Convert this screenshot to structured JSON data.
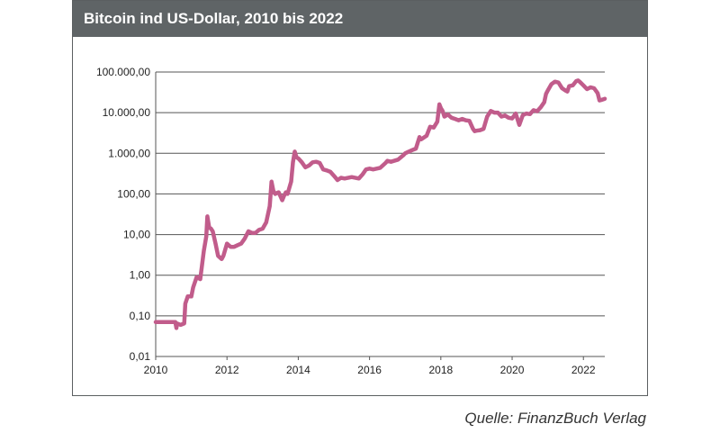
{
  "title": "Bitcoin ind US-Dollar, 2010 bis 2022",
  "source": "Quelle: FinanzBuch Verlag",
  "chart_data": {
    "type": "line",
    "title": "Bitcoin ind US-Dollar, 2010 bis 2022",
    "xlabel": "",
    "ylabel": "",
    "y_scale": "log",
    "xlim": [
      2010,
      2022.6
    ],
    "ylim": [
      0.01,
      100000
    ],
    "x_ticks": [
      2010,
      2012,
      2014,
      2016,
      2018,
      2020,
      2022
    ],
    "x_tick_labels": [
      "2010",
      "2012",
      "2014",
      "2016",
      "2018",
      "2020",
      "2022"
    ],
    "y_ticks": [
      0.01,
      0.1,
      1,
      10,
      100,
      1000,
      10000,
      100000
    ],
    "y_tick_labels": [
      "0,01",
      "0,10",
      "1,00",
      "10,00",
      "100,00",
      "1.000,00",
      "10.000,00",
      "100.000,00"
    ],
    "grid": "horizontal",
    "line_color": "#c15c8b",
    "series": [
      {
        "x": [
          2010.0,
          2010.3,
          2010.55,
          2010.58,
          2010.6,
          2010.7,
          2010.8,
          2010.83,
          2010.9,
          2011.0,
          2011.05,
          2011.15,
          2011.25,
          2011.35,
          2011.42,
          2011.45,
          2011.5,
          2011.55,
          2011.6,
          2011.68,
          2011.75,
          2011.85,
          2011.9,
          2012.0,
          2012.1,
          2012.2,
          2012.3,
          2012.4,
          2012.5,
          2012.6,
          2012.7,
          2012.8,
          2012.9,
          2013.0,
          2013.1,
          2013.2,
          2013.25,
          2013.3,
          2013.35,
          2013.45,
          2013.55,
          2013.6,
          2013.65,
          2013.7,
          2013.8,
          2013.85,
          2013.9,
          2013.95,
          2014.0,
          2014.1,
          2014.2,
          2014.3,
          2014.4,
          2014.5,
          2014.6,
          2014.7,
          2014.8,
          2014.9,
          2015.0,
          2015.1,
          2015.2,
          2015.3,
          2015.5,
          2015.7,
          2015.8,
          2015.9,
          2016.0,
          2016.1,
          2016.3,
          2016.45,
          2016.5,
          2016.6,
          2016.8,
          2016.95,
          2017.0,
          2017.1,
          2017.2,
          2017.3,
          2017.4,
          2017.45,
          2017.6,
          2017.7,
          2017.8,
          2017.9,
          2017.96,
          2018.0,
          2018.05,
          2018.1,
          2018.2,
          2018.3,
          2018.4,
          2018.5,
          2018.6,
          2018.7,
          2018.8,
          2018.9,
          2018.95,
          2019.0,
          2019.1,
          2019.2,
          2019.3,
          2019.4,
          2019.5,
          2019.6,
          2019.7,
          2019.8,
          2019.9,
          2020.0,
          2020.1,
          2020.2,
          2020.3,
          2020.4,
          2020.5,
          2020.6,
          2020.7,
          2020.8,
          2020.9,
          2020.95,
          2021.0,
          2021.1,
          2021.2,
          2021.3,
          2021.4,
          2021.5,
          2021.55,
          2021.6,
          2021.7,
          2021.8,
          2021.85,
          2021.9,
          2022.0,
          2022.1,
          2022.2,
          2022.3,
          2022.4,
          2022.45,
          2022.5,
          2022.6
        ],
        "values": [
          0.07,
          0.07,
          0.07,
          0.05,
          0.065,
          0.06,
          0.065,
          0.2,
          0.3,
          0.3,
          0.5,
          0.9,
          0.8,
          4,
          9,
          28,
          15,
          14,
          12,
          6,
          3,
          2.5,
          3,
          6,
          5,
          5,
          5.5,
          6,
          8,
          12,
          11,
          11,
          13,
          14,
          20,
          50,
          200,
          120,
          100,
          110,
          70,
          90,
          110,
          100,
          200,
          600,
          1100,
          800,
          750,
          600,
          450,
          500,
          600,
          620,
          580,
          400,
          380,
          350,
          280,
          220,
          250,
          240,
          260,
          240,
          300,
          400,
          420,
          400,
          440,
          580,
          650,
          620,
          700,
          900,
          1000,
          1100,
          1200,
          1300,
          2500,
          2200,
          2700,
          4500,
          4300,
          6000,
          16000,
          13000,
          11000,
          8000,
          9000,
          7500,
          7000,
          6500,
          7000,
          6500,
          6300,
          4000,
          3500,
          3600,
          3700,
          4000,
          8000,
          11000,
          10000,
          10000,
          8000,
          8500,
          7500,
          7200,
          9500,
          5000,
          8700,
          9500,
          9200,
          11500,
          10800,
          13500,
          18000,
          29000,
          35000,
          50000,
          58000,
          55000,
          40000,
          35000,
          33000,
          45000,
          47000,
          60000,
          62000,
          57000,
          47000,
          38000,
          42000,
          40000,
          30000,
          20000,
          20500,
          22000
        ]
      }
    ]
  }
}
